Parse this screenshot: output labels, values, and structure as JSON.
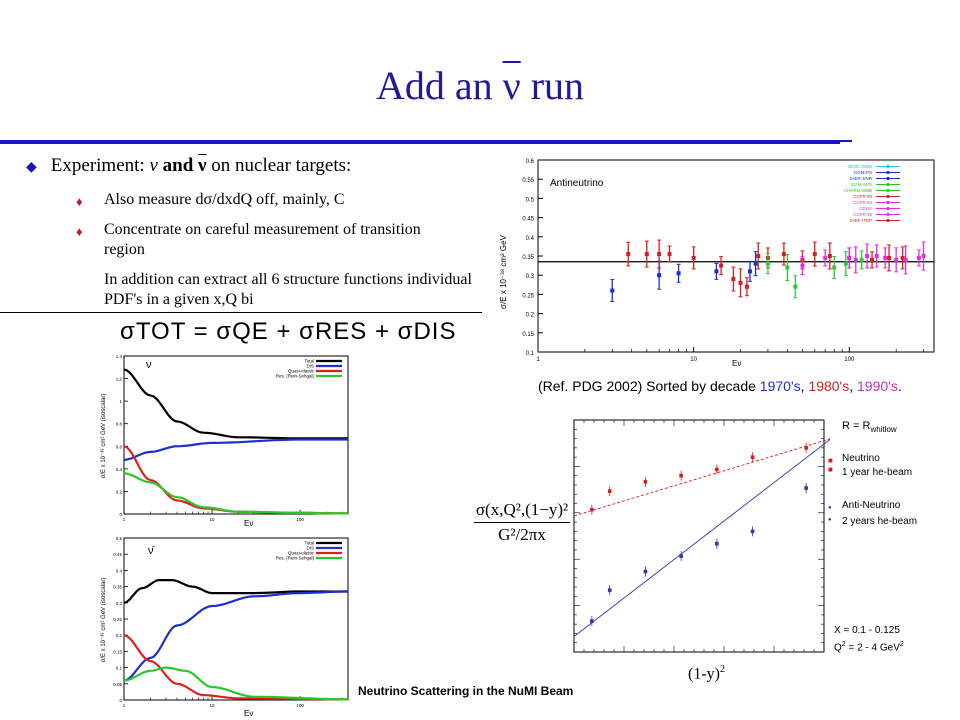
{
  "slide": {
    "title_prefix": "Add an",
    "title_nu": "ν",
    "title_suffix": "run",
    "bullet_main_prefix": "Experiment:",
    "bullet_main_nu1": "ν",
    "bullet_main_and": "and",
    "bullet_main_nu2": "ν",
    "bullet_main_suffix": "on nuclear targets:",
    "sub_bullets": [
      "Also measure dσ/dxdQ off, mainly, C",
      "Concentrate on careful measurement of transition region",
      "In addition can extract all 6 structure functions individual PDF's in a given x,Q bi"
    ],
    "formula": "σTOT = σQE + σRES + σDIS",
    "footer": "Neutrino Scattering in the NuMI Beam"
  },
  "colors": {
    "title": "#1f1a96",
    "rule": "#1c12c8",
    "bullet_red": "#c0201e"
  },
  "top_right_chart": {
    "title": "Antineutrino",
    "ylabel": "σ/E x 10⁻³⁸ cm² GeV",
    "xlabel": "Eν",
    "yticks": [
      "0.6",
      "0.55",
      "0.5",
      "0.45",
      "0.4",
      "0.35",
      "0.3",
      "0.25",
      "0.2",
      "0.15",
      "0.1"
    ],
    "xticks": [
      "1",
      "10",
      "100"
    ],
    "legend": [
      "BEBC WBB",
      "GGM-PS",
      "IHEP-JINR",
      "GGM-SPS",
      "CHARM WBB",
      "CCFR 90",
      "CCFR 84",
      "CDHS",
      "CCFR 95",
      "IHEP-ITEP"
    ],
    "caption_prefix": "(Ref. PDG 2002) Sorted by decade ",
    "caption_1970": "1970's",
    "caption_1980": "1980's",
    "caption_1990": "1990's",
    "caption_sep1": ", ",
    "caption_sep2": ", ",
    "caption_end": "."
  },
  "left_charts": {
    "top_symbol": "ν",
    "bottom_symbol": "ν̄",
    "legend": [
      "Total",
      "DIS",
      "Quasi-elastic",
      "Res. (Rein-Sehgal)"
    ],
    "ylabel": "σ/E x 10⁻³⁸ cm² GeV (isoscalar)",
    "xlabel": "Eν",
    "top_yticks": [
      "1.4",
      "1.2",
      "1",
      "0.8",
      "0.6",
      "0.4",
      "0.2",
      "0"
    ],
    "bottom_yticks": [
      "0.5",
      "0.45",
      "0.4",
      "0.35",
      "0.3",
      "0.25",
      "0.2",
      "0.15",
      "0.1",
      "0.05",
      "0"
    ],
    "xticks": [
      "1",
      "10",
      "100"
    ]
  },
  "bottom_right_chart": {
    "r_label": "R = R",
    "r_sub": "whitlow",
    "neutrino_label1": "Neutrino",
    "neutrino_label2": "1 year he-beam",
    "anti_label1": "Anti-Neutrino",
    "anti_label2": "2 years he-beam",
    "x_label": "X = 0.1 - 0.125",
    "q2_label_prefix": "Q",
    "q2_label_suffix": " = 2 - 4 GeV",
    "xaxis_label": "(1-y)",
    "formula_num": "σ(x,Q²,(1−y)²",
    "formula_den": "G²/2πx"
  },
  "chart_data": [
    {
      "type": "scatter",
      "title": "Antineutrino",
      "xlabel": "Eν",
      "ylabel": "σ/E x 10⁻³⁸ cm² GeV",
      "xscale": "log",
      "xlim": [
        1,
        350
      ],
      "ylim": [
        0.1,
        0.6
      ],
      "series": [
        {
          "name": "1970's",
          "color": "#1c2fd0",
          "points": [
            [
              3,
              0.26
            ],
            [
              6,
              0.3
            ],
            [
              8,
              0.305
            ],
            [
              14,
              0.31
            ],
            [
              23,
              0.31
            ],
            [
              25,
              0.33
            ]
          ]
        },
        {
          "name": "1980's",
          "color": "#d42020",
          "points": [
            [
              3.8,
              0.355
            ],
            [
              5,
              0.355
            ],
            [
              6,
              0.355
            ],
            [
              7,
              0.355
            ],
            [
              10,
              0.345
            ],
            [
              15,
              0.325
            ],
            [
              18,
              0.29
            ],
            [
              20,
              0.28
            ],
            [
              22,
              0.27
            ],
            [
              26,
              0.35
            ],
            [
              30,
              0.345
            ],
            [
              38,
              0.355
            ],
            [
              50,
              0.34
            ],
            [
              60,
              0.355
            ],
            [
              75,
              0.35
            ],
            [
              100,
              0.345
            ],
            [
              140,
              0.34
            ],
            [
              180,
              0.345
            ],
            [
              220,
              0.345
            ]
          ]
        },
        {
          "name": "1990's",
          "color": "#2ec83c",
          "points": [
            [
              30,
              0.33
            ],
            [
              40,
              0.32
            ],
            [
              45,
              0.27
            ],
            [
              80,
              0.32
            ],
            [
              95,
              0.33
            ],
            [
              120,
              0.34
            ]
          ]
        },
        {
          "name": "1990's (CCFR)",
          "color": "#e030e0",
          "points": [
            [
              50,
              0.325
            ],
            [
              70,
              0.345
            ],
            [
              100,
              0.345
            ],
            [
              110,
              0.34
            ],
            [
              130,
              0.35
            ],
            [
              150,
              0.35
            ],
            [
              170,
              0.345
            ],
            [
              200,
              0.34
            ],
            [
              230,
              0.34
            ],
            [
              280,
              0.345
            ],
            [
              300,
              0.35
            ]
          ]
        }
      ],
      "reference_line": 0.335
    },
    {
      "type": "line",
      "title": "ν",
      "xlabel": "Eν",
      "ylabel": "σ/E x 10⁻³⁸ cm² GeV (isoscalar)",
      "xscale": "log",
      "xlim": [
        1,
        350
      ],
      "ylim": [
        0,
        1.4
      ],
      "series": [
        {
          "name": "Total",
          "color": "#000000",
          "points": [
            [
              1,
              1.28
            ],
            [
              2,
              1.05
            ],
            [
              4,
              0.82
            ],
            [
              8,
              0.72
            ],
            [
              20,
              0.68
            ],
            [
              100,
              0.67
            ],
            [
              350,
              0.67
            ]
          ]
        },
        {
          "name": "DIS",
          "color": "#1c2fd0",
          "points": [
            [
              1,
              0.48
            ],
            [
              2,
              0.55
            ],
            [
              4,
              0.6
            ],
            [
              10,
              0.63
            ],
            [
              100,
              0.66
            ],
            [
              350,
              0.66
            ]
          ]
        },
        {
          "name": "Quasi-elastic",
          "color": "#e02020",
          "points": [
            [
              1,
              0.6
            ],
            [
              2,
              0.3
            ],
            [
              4,
              0.12
            ],
            [
              8,
              0.05
            ],
            [
              20,
              0.02
            ],
            [
              100,
              0.01
            ],
            [
              350,
              0.005
            ]
          ]
        },
        {
          "name": "Res. (Rein-Sehgal)",
          "color": "#28c828",
          "points": [
            [
              1,
              0.36
            ],
            [
              2,
              0.28
            ],
            [
              4,
              0.15
            ],
            [
              8,
              0.06
            ],
            [
              20,
              0.02
            ],
            [
              100,
              0.01
            ],
            [
              350,
              0.005
            ]
          ]
        }
      ]
    },
    {
      "type": "line",
      "title": "ν̄",
      "xlabel": "Eν",
      "ylabel": "σ/E x 10⁻³⁸ cm² GeV (isoscalar)",
      "xscale": "log",
      "xlim": [
        1,
        350
      ],
      "ylim": [
        0,
        0.5
      ],
      "series": [
        {
          "name": "Total",
          "color": "#000000",
          "points": [
            [
              1,
              0.3
            ],
            [
              1.6,
              0.345
            ],
            [
              2.5,
              0.37
            ],
            [
              3.5,
              0.37
            ],
            [
              6,
              0.35
            ],
            [
              10,
              0.33
            ],
            [
              30,
              0.33
            ],
            [
              100,
              0.335
            ],
            [
              350,
              0.335
            ]
          ]
        },
        {
          "name": "DIS",
          "color": "#1c2fd0",
          "points": [
            [
              1,
              0.06
            ],
            [
              2,
              0.13
            ],
            [
              4,
              0.23
            ],
            [
              10,
              0.29
            ],
            [
              30,
              0.32
            ],
            [
              100,
              0.33
            ],
            [
              350,
              0.335
            ]
          ]
        },
        {
          "name": "Quasi-elastic",
          "color": "#e02020",
          "points": [
            [
              1,
              0.2
            ],
            [
              2,
              0.12
            ],
            [
              4,
              0.05
            ],
            [
              8,
              0.015
            ],
            [
              20,
              0.005
            ],
            [
              350,
              0.002
            ]
          ]
        },
        {
          "name": "Res. (Rein-Sehgal)",
          "color": "#28c828",
          "points": [
            [
              1,
              0.06
            ],
            [
              2,
              0.09
            ],
            [
              3,
              0.1
            ],
            [
              5,
              0.09
            ],
            [
              10,
              0.04
            ],
            [
              30,
              0.01
            ],
            [
              350,
              0.002
            ]
          ]
        }
      ]
    },
    {
      "type": "scatter",
      "xlabel": "(1-y)²",
      "series": [
        {
          "name": "Neutrino",
          "color": "#d42020",
          "points": [
            [
              0.05,
              0.46
            ],
            [
              0.1,
              0.52
            ],
            [
              0.2,
              0.55
            ],
            [
              0.3,
              0.57
            ],
            [
              0.4,
              0.59
            ],
            [
              0.5,
              0.63
            ],
            [
              0.65,
              0.66
            ]
          ]
        },
        {
          "name": "Anti-Neutrino",
          "color": "#2838b0",
          "points": [
            [
              0.05,
              0.1
            ],
            [
              0.1,
              0.2
            ],
            [
              0.2,
              0.26
            ],
            [
              0.3,
              0.31
            ],
            [
              0.4,
              0.35
            ],
            [
              0.5,
              0.39
            ],
            [
              0.65,
              0.53
            ]
          ]
        }
      ]
    }
  ]
}
